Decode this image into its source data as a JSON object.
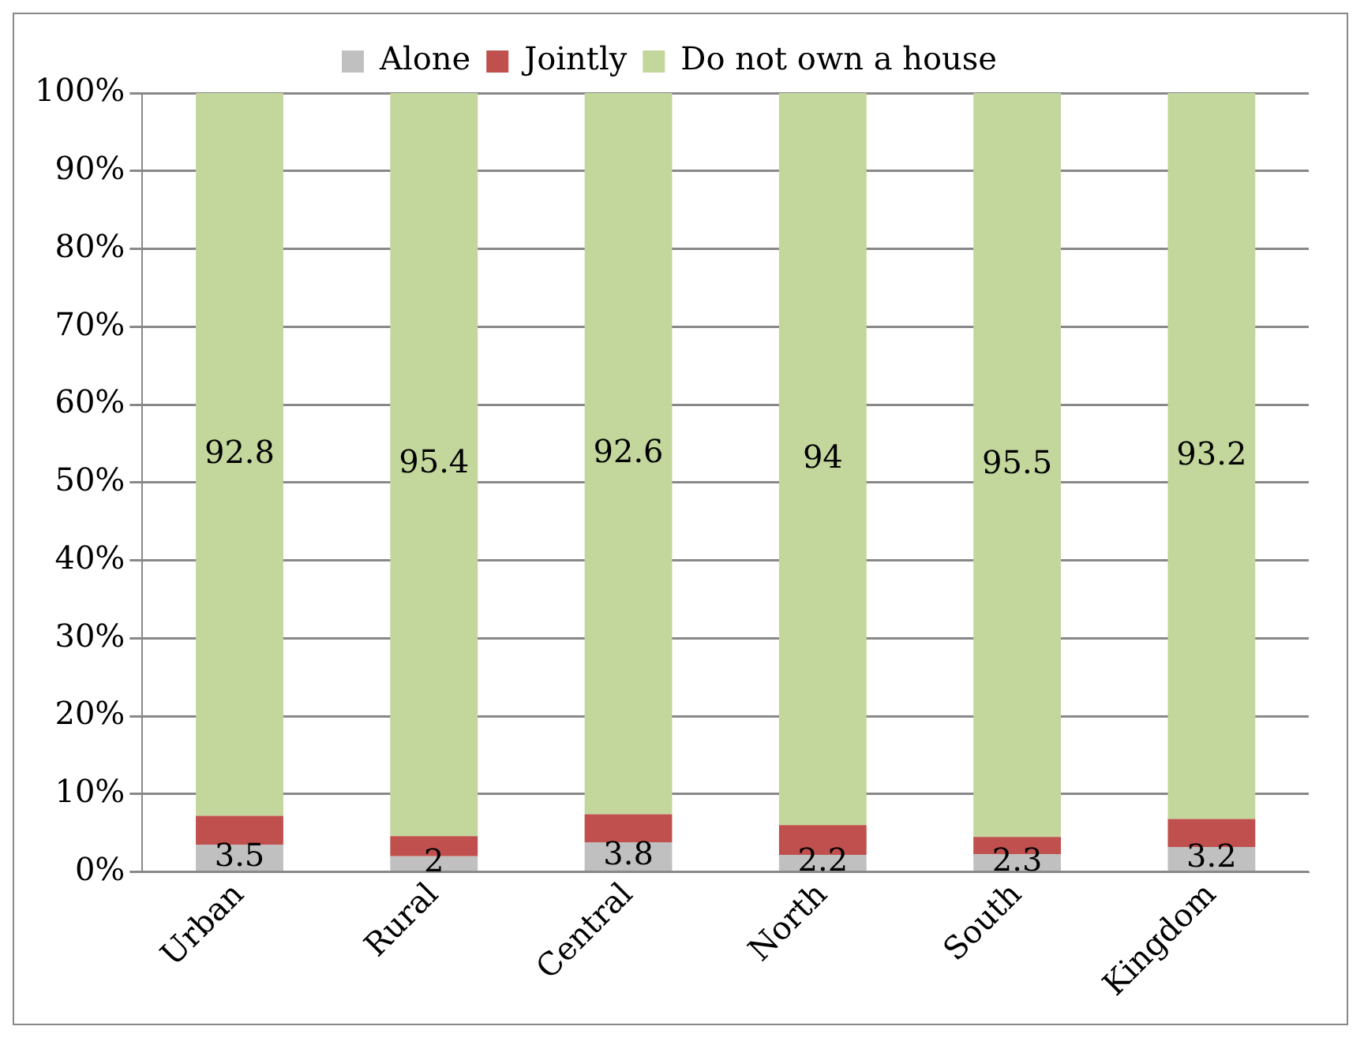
{
  "chart_data": {
    "type": "bar",
    "stacked": true,
    "categories": [
      "Urban",
      "Rural",
      "Central",
      "North",
      "South",
      "Kingdom"
    ],
    "series": [
      {
        "name": "Alone",
        "color": "#c0c0c0",
        "values": [
          3.5,
          2,
          3.8,
          2.2,
          2.3,
          3.2
        ],
        "value_labels": [
          "3.5",
          "2",
          "3.8",
          "2.2",
          "2.3",
          "3.2"
        ]
      },
      {
        "name": "Jointly",
        "color": "#c0504d",
        "values": [
          3.7,
          2.6,
          3.6,
          3.8,
          2.2,
          3.6
        ]
      },
      {
        "name": "Do not own a house",
        "color": "#c3d69b",
        "values": [
          92.8,
          95.4,
          92.6,
          94,
          95.5,
          93.2
        ],
        "value_labels": [
          "92.8",
          "95.4",
          "92.6",
          "94",
          "95.5",
          "93.2"
        ]
      }
    ],
    "ylim": [
      0,
      100
    ],
    "yticks": [
      {
        "value": 0,
        "label": "0%"
      },
      {
        "value": 10,
        "label": "10%"
      },
      {
        "value": 20,
        "label": "20%"
      },
      {
        "value": 30,
        "label": "30%"
      },
      {
        "value": 40,
        "label": "40%"
      },
      {
        "value": 50,
        "label": "50%"
      },
      {
        "value": 60,
        "label": "60%"
      },
      {
        "value": 70,
        "label": "70%"
      },
      {
        "value": 80,
        "label": "80%"
      },
      {
        "value": 90,
        "label": "90%"
      },
      {
        "value": 100,
        "label": "100%"
      }
    ],
    "grid": "y",
    "legend": "top"
  }
}
